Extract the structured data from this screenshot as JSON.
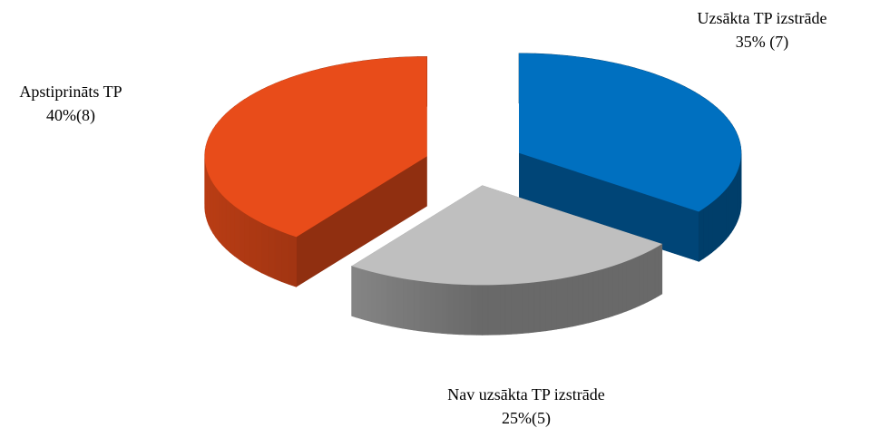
{
  "chart_data": {
    "type": "pie3d",
    "categories": [
      "Uzsākta TP izstrāde",
      "Nav uzsākta TP izstrāde",
      "Apstiprināts TP"
    ],
    "values": [
      35,
      25,
      40
    ],
    "value_labels": [
      "35% (7)",
      "25%(5)",
      "40%(8)"
    ],
    "colors": [
      "#0070c0",
      "#bfbfbf",
      "#e84c1a"
    ],
    "exploded": true
  }
}
